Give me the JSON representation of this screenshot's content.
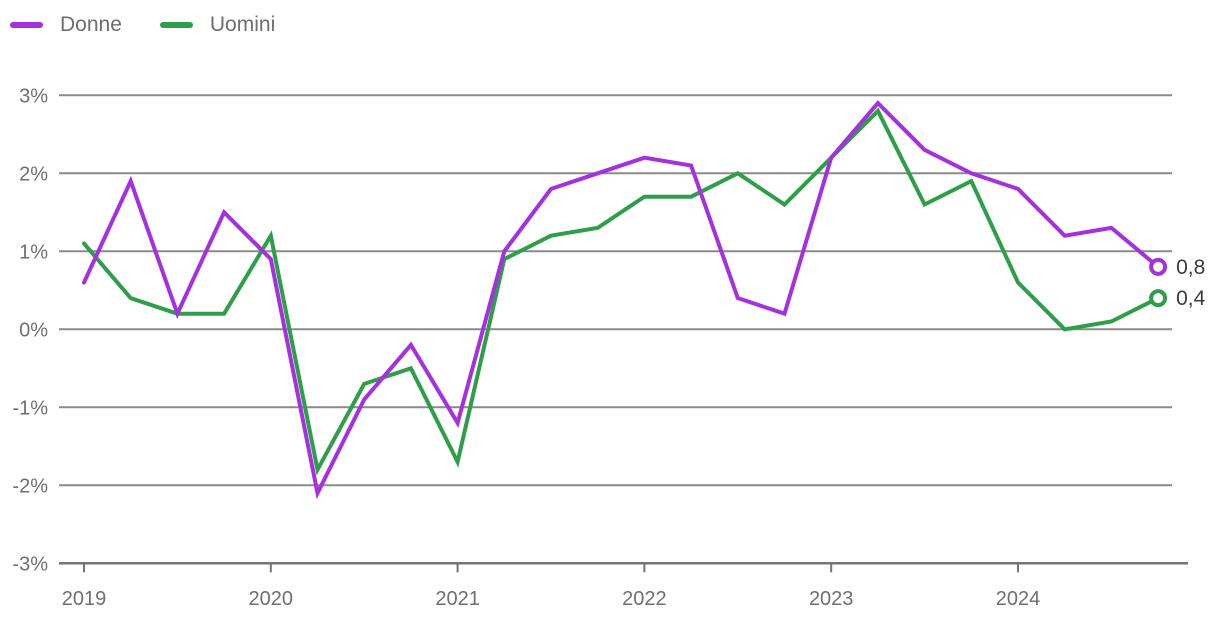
{
  "legend": {
    "items": [
      {
        "label": "Donne",
        "color": "#a431dd"
      },
      {
        "label": "Uomini",
        "color": "#2f9e48"
      }
    ]
  },
  "chart_data": {
    "type": "line",
    "title": "",
    "xlabel": "",
    "ylabel": "",
    "x_unit": "quarterly, 2019Q1 - 2024Q4",
    "x_tick_labels": [
      "2019",
      "2020",
      "2021",
      "2022",
      "2023",
      "2024"
    ],
    "x_tick_quarter_indexes": [
      0,
      4,
      8,
      12,
      16,
      20
    ],
    "y_tick_labels": [
      "3%",
      "2%",
      "1%",
      "0%",
      "-1%",
      "-2%",
      "-3%"
    ],
    "y_tick_values": [
      3,
      2,
      1,
      0,
      -1,
      -2,
      -3
    ],
    "ylim": [
      -3,
      3
    ],
    "grid": true,
    "legend_position": "top-left",
    "series": [
      {
        "name": "Donne",
        "color": "#a431dd",
        "end_label": "0,8",
        "values": [
          0.6,
          1.9,
          0.2,
          1.5,
          0.9,
          -2.1,
          -0.9,
          -0.2,
          -1.2,
          1.0,
          1.8,
          2.0,
          2.2,
          2.1,
          0.4,
          0.2,
          2.2,
          2.9,
          2.3,
          2.0,
          1.8,
          1.2,
          1.3,
          0.8
        ]
      },
      {
        "name": "Uomini",
        "color": "#2f9e48",
        "end_label": "0,4",
        "values": [
          1.1,
          0.4,
          0.2,
          0.2,
          1.2,
          -1.8,
          -0.7,
          -0.5,
          -1.7,
          0.9,
          1.2,
          1.3,
          1.7,
          1.7,
          2.0,
          1.6,
          2.2,
          2.8,
          1.6,
          1.9,
          0.6,
          0.0,
          0.1,
          0.4
        ]
      }
    ],
    "colors": {
      "gridline": "#8a8a8a",
      "axis_line": "#757575",
      "tick_label": "#6f6f6f",
      "end_label": "#3c3c3c",
      "marker_fill": "#ffffff"
    }
  }
}
